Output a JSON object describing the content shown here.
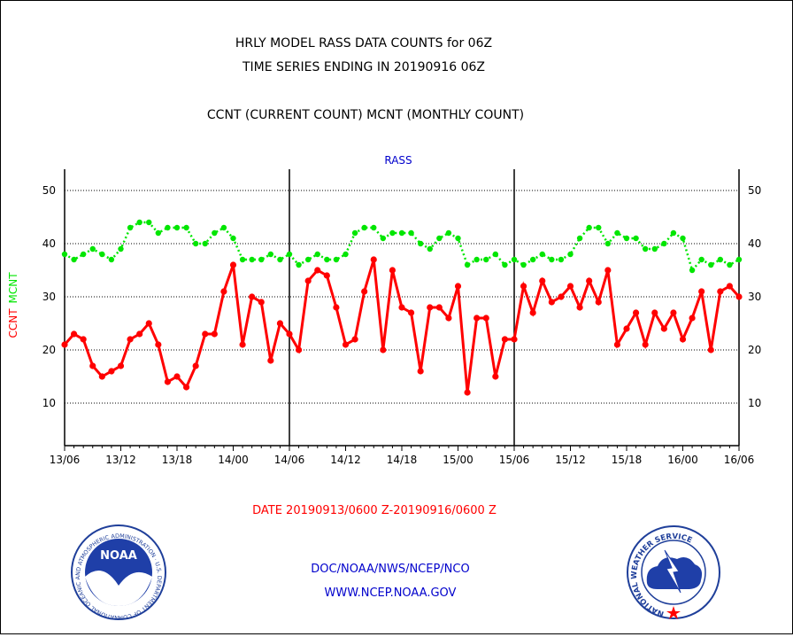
{
  "header": {
    "title_line1": "HRLY MODEL RASS DATA COUNTS for 06Z",
    "title_line2": "TIME SERIES ENDING IN 20190916 06Z",
    "subtitle": "CCNT (CURRENT COUNT) MCNT (MONTHLY COUNT)"
  },
  "footer": {
    "date_range": "DATE 20190913/0600 Z-20190916/0600 Z",
    "credit_line1": "DOC/NOAA/NWS/NCEP/NCO",
    "credit_line2": "WWW.NCEP.NOAA.GOV"
  },
  "logos": {
    "noaa": {
      "text": "NOAA",
      "ring_text": "NATIONAL OCEANIC AND ATMOSPHERIC ADMINISTRATION · U.S. DEPARTMENT OF COMMERCE ·"
    },
    "nws": {
      "ring_text": "NATIONAL WEATHER SERVICE"
    }
  },
  "chart_data": {
    "type": "line",
    "title": "RASS",
    "ylabel_ccnt": "CCNT",
    "ylabel_mcnt": "MCNT",
    "x_tick_labels": [
      "13/06",
      "13/12",
      "13/18",
      "14/00",
      "14/06",
      "14/12",
      "14/18",
      "15/00",
      "15/06",
      "15/12",
      "15/18",
      "16/00",
      "16/06"
    ],
    "y_ticks": [
      10,
      20,
      30,
      40,
      50
    ],
    "ylim": [
      2,
      54
    ],
    "xlim_hours": [
      0,
      72
    ],
    "grid": true,
    "colors": {
      "ccnt": "#ff0000",
      "mcnt": "#00e600",
      "axis": "#000000",
      "title": "#0000cc"
    },
    "series": [
      {
        "key": "ccnt",
        "values": [
          21,
          23,
          22,
          17,
          15,
          16,
          17,
          22,
          23,
          25,
          21,
          14,
          15,
          13,
          17,
          23,
          23,
          31,
          36,
          21,
          30,
          29,
          18,
          25,
          23,
          20,
          33,
          35,
          34,
          28,
          21,
          22,
          31,
          37,
          20,
          35,
          28,
          27,
          16,
          28,
          28,
          26,
          32,
          12,
          26,
          26,
          15,
          22,
          22,
          32,
          27,
          33,
          29,
          30,
          32,
          28,
          33,
          29,
          35,
          21,
          24,
          27,
          21,
          27,
          24,
          27,
          22,
          26,
          31,
          20,
          31,
          32,
          30
        ]
      },
      {
        "key": "mcnt",
        "values": [
          38,
          37,
          38,
          39,
          38,
          37,
          39,
          43,
          44,
          44,
          42,
          43,
          43,
          43,
          40,
          40,
          42,
          43,
          41,
          37,
          37,
          37,
          38,
          37,
          38,
          36,
          37,
          38,
          37,
          37,
          38,
          42,
          43,
          43,
          41,
          42,
          42,
          42,
          40,
          39,
          41,
          42,
          41,
          36,
          37,
          37,
          38,
          36,
          37,
          36,
          37,
          38,
          37,
          37,
          38,
          41,
          43,
          43,
          40,
          42,
          41,
          41,
          39,
          39,
          40,
          42,
          41,
          35,
          37,
          36,
          37,
          36,
          37
        ]
      }
    ]
  }
}
